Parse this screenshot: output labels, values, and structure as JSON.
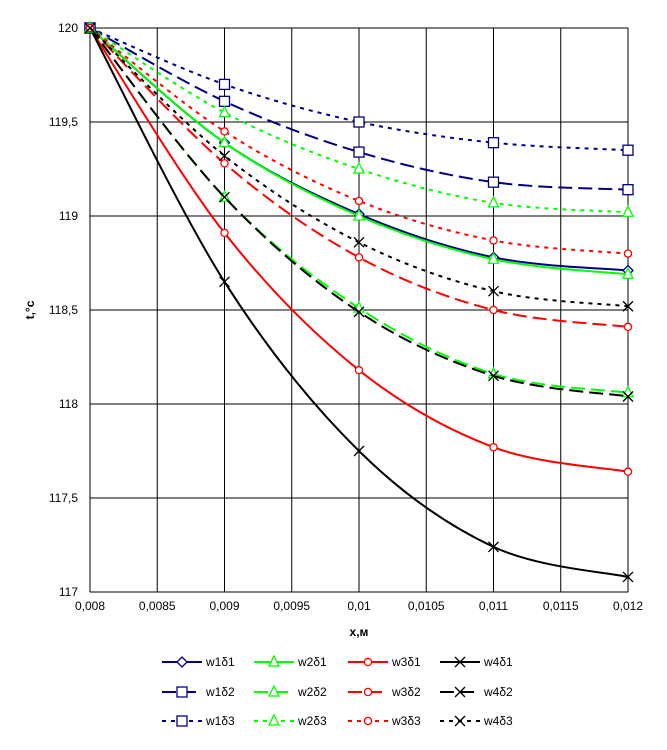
{
  "chart_data": {
    "type": "line",
    "xlabel": "x,м",
    "ylabel": "t,°c",
    "xlim": [
      0.008,
      0.012
    ],
    "ylim": [
      117,
      120
    ],
    "x_ticks": [
      0.008,
      0.0085,
      0.009,
      0.0095,
      0.01,
      0.0105,
      0.011,
      0.0115,
      0.012
    ],
    "x_tick_labels": [
      "0,008",
      "0,0085",
      "0,009",
      "0,0095",
      "0,01",
      "0,0105",
      "0,011",
      "0,0115",
      "0,012"
    ],
    "y_ticks": [
      117,
      117.5,
      118,
      118.5,
      119,
      119.5,
      120
    ],
    "y_tick_labels": [
      "117",
      "117,5",
      "118",
      "118,5",
      "119",
      "119,5",
      "120"
    ],
    "grid": true,
    "legend_position": "bottom",
    "x": [
      0.008,
      0.009,
      0.01,
      0.011,
      0.012
    ],
    "series": [
      {
        "name": "w1δ1",
        "values": [
          120,
          119.39,
          119.01,
          118.78,
          118.71
        ],
        "color": "#000080",
        "dash": "solid",
        "marker": "diamond"
      },
      {
        "name": "w2δ1",
        "values": [
          120,
          119.39,
          119.0,
          118.77,
          118.69
        ],
        "color": "#00ff00",
        "dash": "solid",
        "marker": "triangle"
      },
      {
        "name": "w3δ1",
        "values": [
          120,
          118.91,
          118.18,
          117.77,
          117.64
        ],
        "color": "#ff0000",
        "dash": "solid",
        "marker": "circle"
      },
      {
        "name": "w4δ1",
        "values": [
          120,
          118.65,
          117.75,
          117.24,
          117.08
        ],
        "color": "#000000",
        "dash": "solid",
        "marker": "x"
      },
      {
        "name": "w1δ2",
        "values": [
          120,
          119.61,
          119.34,
          119.18,
          119.14
        ],
        "color": "#000080",
        "dash": "long",
        "marker": "square"
      },
      {
        "name": "w2δ2",
        "values": [
          120,
          119.1,
          118.51,
          118.16,
          118.06
        ],
        "color": "#00ff00",
        "dash": "long",
        "marker": "triangle"
      },
      {
        "name": "w3δ2",
        "values": [
          120,
          119.28,
          118.78,
          118.5,
          118.41
        ],
        "color": "#ff0000",
        "dash": "long",
        "marker": "circle"
      },
      {
        "name": "w4δ2",
        "values": [
          120,
          119.1,
          118.49,
          118.15,
          118.04
        ],
        "color": "#000000",
        "dash": "long",
        "marker": "x"
      },
      {
        "name": "w1δ3",
        "values": [
          120,
          119.7,
          119.5,
          119.39,
          119.35
        ],
        "color": "#000080",
        "dash": "short",
        "marker": "square"
      },
      {
        "name": "w2δ3",
        "values": [
          120,
          119.55,
          119.25,
          119.07,
          119.02
        ],
        "color": "#00ff00",
        "dash": "short",
        "marker": "triangle"
      },
      {
        "name": "w3δ3",
        "values": [
          120,
          119.45,
          119.08,
          118.87,
          118.8
        ],
        "color": "#ff0000",
        "dash": "short",
        "marker": "circle"
      },
      {
        "name": "w4δ3",
        "values": [
          120,
          119.32,
          118.86,
          118.6,
          118.52
        ],
        "color": "#000000",
        "dash": "short",
        "marker": "x"
      }
    ]
  }
}
